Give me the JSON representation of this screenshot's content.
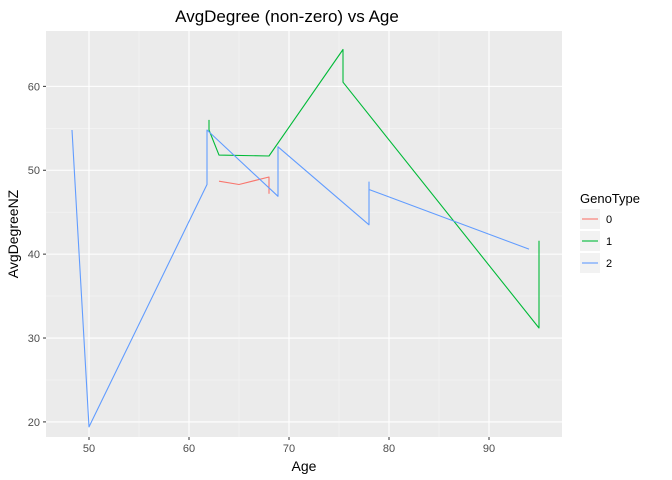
{
  "chart_data": {
    "type": "line",
    "title": "AvgDegree (non-zero) vs Age",
    "xlabel": "Age",
    "ylabel": "AvgDegreeNZ",
    "xlim": [
      45.7,
      97.3
    ],
    "ylim": [
      18.2,
      66.6
    ],
    "xticks": [
      50,
      60,
      70,
      80,
      90
    ],
    "yticks": [
      20,
      30,
      40,
      50,
      60
    ],
    "grid": true,
    "legend": {
      "title": "GenoType",
      "position": "right"
    },
    "series": [
      {
        "name": "0",
        "color": "#F8766D",
        "points": [
          [
            63,
            48.7
          ],
          [
            65,
            48.3
          ],
          [
            68,
            49.2
          ],
          [
            68,
            47.2
          ]
        ]
      },
      {
        "name": "1",
        "color": "#00BA38",
        "points": [
          [
            62,
            56.0
          ],
          [
            62,
            54.8
          ],
          [
            63,
            51.8
          ],
          [
            68,
            51.7
          ],
          [
            75.4,
            64.4
          ],
          [
            75.4,
            60.5
          ],
          [
            95,
            31.2
          ],
          [
            95,
            41.6
          ]
        ]
      },
      {
        "name": "2",
        "color": "#619CFF",
        "points": [
          [
            48.3,
            54.8
          ],
          [
            50,
            19.4
          ],
          [
            61.8,
            48.3
          ],
          [
            61.8,
            54.8
          ],
          [
            68.9,
            46.9
          ],
          [
            68.9,
            52.8
          ],
          [
            78,
            43.5
          ],
          [
            78,
            48.6
          ],
          [
            78,
            47.7
          ],
          [
            94,
            40.6
          ]
        ]
      }
    ]
  }
}
